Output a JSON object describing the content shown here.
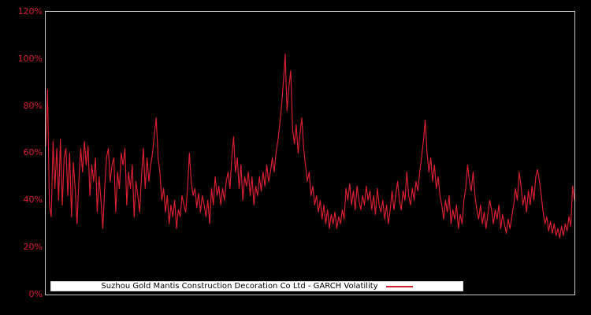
{
  "window": {
    "background": "#000000"
  },
  "chart_data": {
    "type": "line",
    "title": "Suzhou Gold Mantis Construction Decoration Co Ltd - GARCH Volatility",
    "xlabel": "",
    "ylabel": "",
    "ylim": [
      0,
      120
    ],
    "grid": false,
    "legend_position": "lower center",
    "ytick_labels": [
      "120%",
      "100%",
      "80%",
      "60%",
      "40%",
      "20%",
      "0%"
    ],
    "xtick_labels": [],
    "legend": {
      "label": "Suzhou Gold Mantis Construction Decoration Co Ltd - GARCH Volatility"
    },
    "colors": {
      "line": "#d62031",
      "tick_labels": "#d62031",
      "axis_border": "#c8c8c8",
      "background": "#000000",
      "legend_background": "#ffffff",
      "legend_text": "#000000"
    },
    "series": [
      {
        "name": "GARCH Volatility",
        "unit": "%",
        "values": [
          63,
          87,
          38,
          33,
          65,
          45,
          62,
          40,
          66,
          38,
          58,
          62,
          42,
          60,
          33,
          56,
          45,
          30,
          48,
          62,
          52,
          65,
          55,
          63,
          42,
          55,
          48,
          58,
          35,
          50,
          40,
          28,
          45,
          58,
          62,
          48,
          55,
          58,
          35,
          52,
          45,
          60,
          55,
          62,
          38,
          52,
          45,
          55,
          33,
          48,
          42,
          35,
          50,
          62,
          45,
          58,
          48,
          55,
          60,
          68,
          75,
          58,
          52,
          40,
          45,
          35,
          42,
          30,
          38,
          33,
          40,
          28,
          36,
          33,
          42,
          38,
          35,
          45,
          60,
          48,
          42,
          45,
          37,
          43,
          35,
          42,
          38,
          33,
          40,
          30,
          45,
          38,
          50,
          42,
          46,
          38,
          45,
          40,
          48,
          52,
          45,
          58,
          67,
          52,
          58,
          45,
          55,
          40,
          50,
          46,
          52,
          42,
          50,
          38,
          46,
          42,
          50,
          44,
          52,
          46,
          55,
          48,
          52,
          58,
          52,
          60,
          65,
          72,
          80,
          90,
          102,
          78,
          88,
          95,
          70,
          64,
          72,
          60,
          68,
          75,
          62,
          55,
          48,
          52,
          42,
          46,
          38,
          42,
          35,
          40,
          32,
          38,
          30,
          36,
          28,
          34,
          30,
          35,
          28,
          33,
          30,
          36,
          32,
          45,
          40,
          47,
          38,
          44,
          36,
          46,
          40,
          36,
          42,
          38,
          46,
          40,
          44,
          36,
          42,
          34,
          45,
          38,
          35,
          40,
          32,
          38,
          30,
          36,
          44,
          36,
          42,
          48,
          40,
          36,
          44,
          40,
          52,
          42,
          38,
          45,
          40,
          48,
          44,
          52,
          58,
          65,
          74,
          60,
          52,
          58,
          48,
          55,
          45,
          50,
          42,
          38,
          32,
          40,
          35,
          42,
          30,
          36,
          32,
          38,
          28,
          34,
          30,
          40,
          45,
          55,
          48,
          44,
          52,
          42,
          36,
          32,
          38,
          30,
          35,
          28,
          34,
          40,
          36,
          30,
          36,
          32,
          38,
          28,
          34,
          30,
          26,
          32,
          28,
          33,
          38,
          45,
          40,
          52,
          46,
          38,
          42,
          35,
          44,
          38,
          46,
          40,
          50,
          53,
          48,
          42,
          35,
          30,
          33,
          27,
          31,
          26,
          30,
          25,
          28,
          24,
          29,
          25,
          30,
          27,
          33,
          29,
          46,
          40
        ]
      }
    ]
  }
}
